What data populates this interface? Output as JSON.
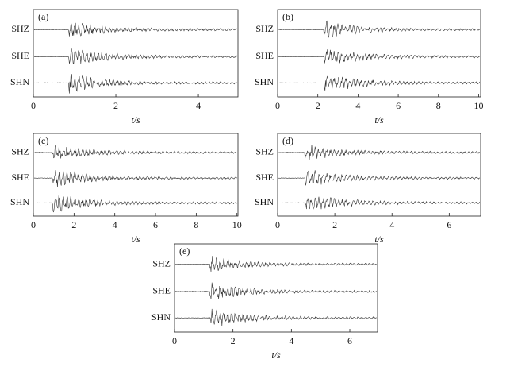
{
  "chart_data": [
    {
      "type": "waveform",
      "label": "(a)",
      "xlabel": "t/s",
      "xlim": [
        0,
        4.96
      ],
      "xticks": [
        0,
        2,
        4
      ],
      "series": [
        {
          "name": "SHZ",
          "color": "#333333",
          "onset": 0.85
        },
        {
          "name": "SHE",
          "color": "#333333",
          "onset": 0.85
        },
        {
          "name": "SHN",
          "color": "#333333",
          "onset": 0.85
        }
      ]
    },
    {
      "type": "waveform",
      "label": "(b)",
      "xlabel": "t/s",
      "xlim": [
        0,
        10.1
      ],
      "xticks": [
        0,
        2,
        4,
        6,
        8,
        10
      ],
      "series": [
        {
          "name": "SHZ",
          "color": "#333333",
          "onset": 2.3
        },
        {
          "name": "SHE",
          "color": "#333333",
          "onset": 2.3
        },
        {
          "name": "SHN",
          "color": "#333333",
          "onset": 2.3
        }
      ]
    },
    {
      "type": "waveform",
      "label": "(c)",
      "xlabel": "t/s",
      "xlim": [
        0,
        10.05
      ],
      "xticks": [
        0,
        2,
        4,
        6,
        8,
        10
      ],
      "series": [
        {
          "name": "SHZ",
          "color": "#333333",
          "onset": 0.95
        },
        {
          "name": "SHE",
          "color": "#333333",
          "onset": 0.95
        },
        {
          "name": "SHN",
          "color": "#333333",
          "onset": 0.95
        }
      ]
    },
    {
      "type": "waveform",
      "label": "(d)",
      "xlabel": "t/s",
      "xlim": [
        0,
        7.1
      ],
      "xticks": [
        0,
        2,
        4,
        6
      ],
      "series": [
        {
          "name": "SHZ",
          "color": "#333333",
          "onset": 0.95
        },
        {
          "name": "SHE",
          "color": "#333333",
          "onset": 0.95
        },
        {
          "name": "SHN",
          "color": "#333333",
          "onset": 0.95
        }
      ]
    },
    {
      "type": "waveform",
      "label": "(e)",
      "xlabel": "t/s",
      "xlim": [
        0,
        6.95
      ],
      "xticks": [
        0,
        2,
        4,
        6
      ],
      "series": [
        {
          "name": "SHZ",
          "color": "#333333",
          "onset": 1.2
        },
        {
          "name": "SHE",
          "color": "#333333",
          "onset": 1.2
        },
        {
          "name": "SHN",
          "color": "#333333",
          "onset": 1.2
        }
      ]
    }
  ]
}
